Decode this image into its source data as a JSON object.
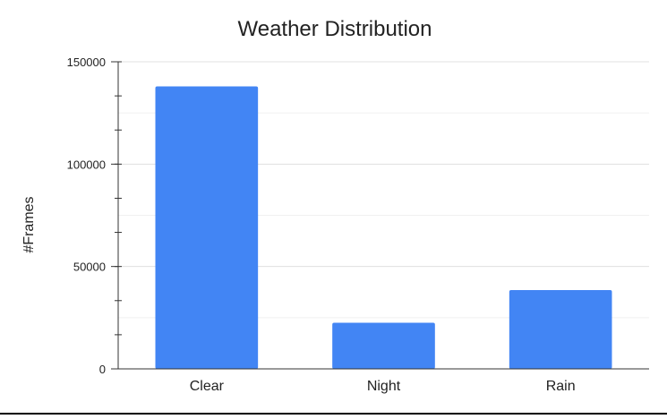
{
  "chart_data": {
    "type": "bar",
    "title": "Weather Distribution",
    "xlabel": "",
    "ylabel": "#Frames",
    "categories": [
      "Clear",
      "Night",
      "Rain"
    ],
    "values": [
      138000,
      22500,
      38500
    ],
    "ylim": [
      0,
      150000
    ],
    "yticks": [
      "0",
      "50000",
      "100000",
      "150000"
    ],
    "grid": true,
    "colors": {
      "bar": "#4285f4",
      "grid": "#e0e0e0",
      "axis": "#333333"
    }
  }
}
